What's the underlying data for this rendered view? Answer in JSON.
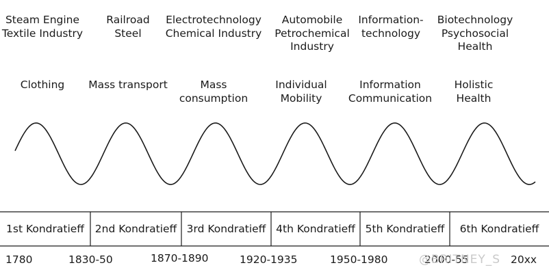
{
  "industries": [
    "Steam Engine\nTextile Industry",
    "Railroad\nSteel",
    "Electrotechnology\nChemical Industry",
    "Automobile\nPetrochemical\nIndustry",
    "Information-\ntechnology",
    "Biotechnology\nPsychosocial\nHealth"
  ],
  "needs": [
    "Clothing",
    "Mass transport",
    "Mass\nconsumption",
    "Individual\nMobility",
    "Information\nCommunication",
    "Holistic\nHealth"
  ],
  "cycles": [
    "1st Kondratieff",
    "2nd Kondratieff",
    "3rd Kondratieff",
    "4th Kondratieff",
    "5th Kondratieff",
    "6th Kondratieff"
  ],
  "periods": [
    "1780",
    "1830-50",
    "1870-1890",
    "1920-1935",
    "1950-1980",
    "2000-55",
    "20xx"
  ],
  "watermark": "@BRITNEY_S",
  "colors": {
    "line": "#1a1a1a",
    "watermark": "#c9c9c9"
  }
}
